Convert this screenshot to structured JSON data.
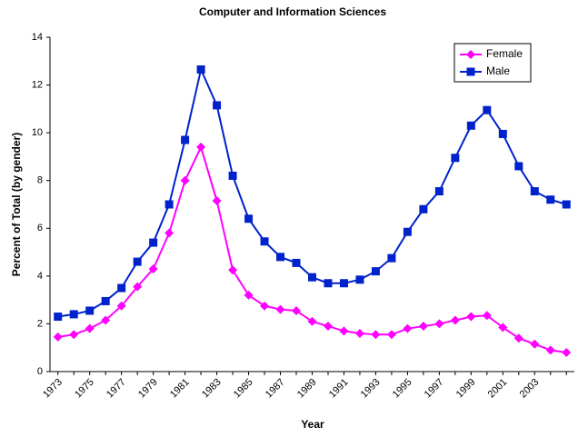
{
  "chart_data": {
    "type": "line",
    "title": "Computer and Information Sciences",
    "xlabel": "Year",
    "ylabel": "Percent of Total (by gender)",
    "categories": [
      "1973",
      null,
      "1975",
      null,
      "1977",
      null,
      "1979",
      null,
      "1981",
      null,
      "1983",
      null,
      "1985",
      null,
      "1987",
      null,
      "1989",
      null,
      "1991",
      null,
      "1993",
      null,
      "1995",
      null,
      "1997",
      null,
      "1999",
      null,
      "2001",
      null,
      "2003",
      null,
      null
    ],
    "series": [
      {
        "name": "Female",
        "color": "#ff00ff",
        "marker": "diamond",
        "values": [
          1.45,
          1.55,
          1.8,
          2.15,
          2.75,
          3.55,
          4.3,
          5.8,
          8.0,
          9.4,
          7.15,
          4.25,
          3.2,
          2.75,
          2.6,
          2.55,
          2.1,
          1.9,
          1.7,
          1.6,
          1.55,
          1.55,
          1.8,
          1.9,
          2.0,
          2.15,
          2.3,
          2.35,
          1.85,
          1.4,
          1.15,
          0.9,
          0.8
        ]
      },
      {
        "name": "Male",
        "color": "#0022cc",
        "marker": "square",
        "values": [
          2.3,
          2.4,
          2.55,
          2.95,
          3.5,
          4.6,
          5.4,
          7.0,
          9.7,
          12.65,
          11.15,
          8.2,
          6.4,
          5.45,
          4.8,
          4.55,
          3.95,
          3.7,
          3.7,
          3.85,
          4.2,
          4.75,
          5.85,
          6.8,
          7.55,
          8.95,
          10.3,
          10.95,
          9.95,
          8.6,
          7.55,
          7.2,
          7.0
        ]
      }
    ],
    "ylim": [
      0,
      14
    ],
    "yticks": [
      0,
      2,
      4,
      6,
      8,
      10,
      12,
      14
    ],
    "grid": false,
    "legend": "upper right"
  }
}
